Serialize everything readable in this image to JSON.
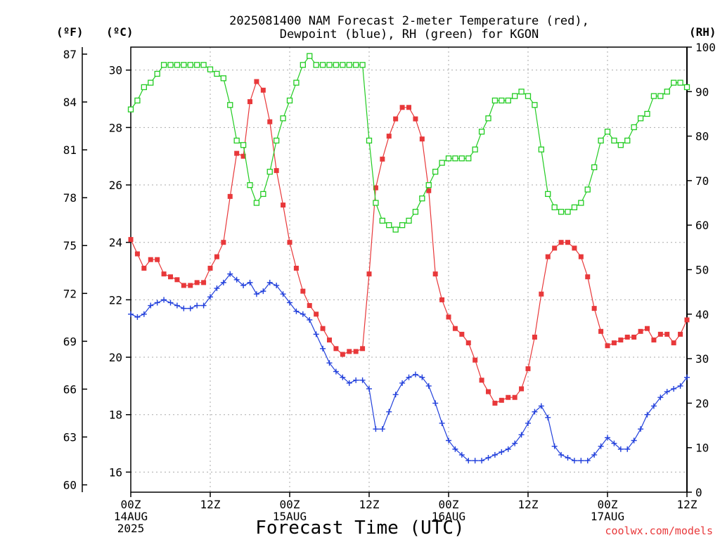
{
  "chart_data": {
    "type": "line",
    "title": [
      "2025081400 NAM Forecast 2-meter Temperature (red),",
      "Dewpoint (blue), RH (green) for KGON"
    ],
    "xlabel": "Forecast Time (UTC)",
    "credit": "coolwx.com/models",
    "units": {
      "fahrenheit": "(ºF)",
      "celsius": "(ºC)",
      "rh": "(RH)"
    },
    "x_range_hours": [
      0,
      84
    ],
    "x_ticks": [
      {
        "hour": 0,
        "label": [
          "00Z",
          "14AUG",
          "2025"
        ]
      },
      {
        "hour": 12,
        "label": [
          "12Z"
        ]
      },
      {
        "hour": 24,
        "label": [
          "00Z",
          "15AUG"
        ]
      },
      {
        "hour": 36,
        "label": [
          "12Z"
        ]
      },
      {
        "hour": 48,
        "label": [
          "00Z",
          "16AUG"
        ]
      },
      {
        "hour": 60,
        "label": [
          "12Z"
        ]
      },
      {
        "hour": 72,
        "label": [
          "00Z",
          "17AUG"
        ]
      },
      {
        "hour": 84,
        "label": [
          "12Z"
        ]
      }
    ],
    "y_celsius_range": [
      15.3,
      30.8
    ],
    "y_celsius_ticks": [
      "16",
      "18",
      "20",
      "22",
      "24",
      "26",
      "28",
      "30"
    ],
    "y_fahrenheit_ticks": [
      "60",
      "63",
      "66",
      "69",
      "72",
      "75",
      "78",
      "81",
      "84",
      "87"
    ],
    "y_rh_range": [
      0,
      100
    ],
    "y_rh_ticks": [
      "0",
      "10",
      "20",
      "30",
      "40",
      "50",
      "60",
      "70",
      "80",
      "90",
      "100"
    ],
    "grid": true,
    "colors": {
      "temperature": "#e8383a",
      "dewpoint": "#2240dc",
      "rh": "#22cc22",
      "grid": "#aaaaaa"
    },
    "series": [
      {
        "name": "Temperature (red)",
        "axis": "celsius",
        "marker": "filled-square",
        "x": [
          0,
          1,
          2,
          3,
          4,
          5,
          6,
          7,
          8,
          9,
          10,
          11,
          12,
          13,
          14,
          15,
          16,
          17,
          18,
          19,
          20,
          21,
          22,
          23,
          24,
          25,
          26,
          27,
          28,
          29,
          30,
          31,
          32,
          33,
          34,
          35,
          36,
          37,
          38,
          39,
          40,
          41,
          42,
          43,
          44,
          45,
          46,
          47,
          48,
          49,
          50,
          51,
          52,
          53,
          54,
          55,
          56,
          57,
          58,
          59,
          60,
          61,
          62,
          63,
          64,
          65,
          66,
          67,
          68,
          69,
          70,
          71,
          72,
          73,
          74,
          75,
          76,
          77,
          78,
          79,
          80,
          81,
          82,
          83,
          84
        ],
        "values": [
          24.1,
          23.6,
          23.1,
          23.4,
          23.4,
          22.9,
          22.8,
          22.7,
          22.5,
          22.5,
          22.6,
          22.6,
          23.1,
          23.5,
          24.0,
          25.6,
          27.1,
          27.0,
          28.9,
          29.6,
          29.3,
          28.2,
          26.5,
          25.3,
          24.0,
          23.1,
          22.3,
          21.8,
          21.5,
          21.0,
          20.6,
          20.3,
          20.1,
          20.2,
          20.2,
          20.3,
          22.9,
          25.9,
          26.9,
          27.7,
          28.3,
          28.7,
          28.7,
          28.3,
          27.6,
          25.8,
          22.9,
          22.0,
          21.4,
          21.0,
          20.8,
          20.5,
          19.9,
          19.2,
          18.8,
          18.4,
          18.5,
          18.6,
          18.6,
          18.9,
          19.6,
          20.7,
          22.2,
          23.5,
          23.8,
          24.0,
          24.0,
          23.8,
          23.5,
          22.8,
          21.7,
          20.9,
          20.4,
          20.5,
          20.6,
          20.7,
          20.7,
          20.9,
          21.0,
          20.6,
          20.8,
          20.8,
          20.5,
          20.8,
          21.3
        ]
      },
      {
        "name": "Dewpoint (blue)",
        "axis": "celsius",
        "marker": "plus",
        "x": [
          0,
          1,
          2,
          3,
          4,
          5,
          6,
          7,
          8,
          9,
          10,
          11,
          12,
          13,
          14,
          15,
          16,
          17,
          18,
          19,
          20,
          21,
          22,
          23,
          24,
          25,
          26,
          27,
          28,
          29,
          30,
          31,
          32,
          33,
          34,
          35,
          36,
          37,
          38,
          39,
          40,
          41,
          42,
          43,
          44,
          45,
          46,
          47,
          48,
          49,
          50,
          51,
          52,
          53,
          54,
          55,
          56,
          57,
          58,
          59,
          60,
          61,
          62,
          63,
          64,
          65,
          66,
          67,
          68,
          69,
          70,
          71,
          72,
          73,
          74,
          75,
          76,
          77,
          78,
          79,
          80,
          81,
          82,
          83,
          84
        ],
        "values": [
          21.5,
          21.4,
          21.5,
          21.8,
          21.9,
          22.0,
          21.9,
          21.8,
          21.7,
          21.7,
          21.8,
          21.8,
          22.1,
          22.4,
          22.6,
          22.9,
          22.7,
          22.5,
          22.6,
          22.2,
          22.3,
          22.6,
          22.5,
          22.2,
          21.9,
          21.6,
          21.5,
          21.3,
          20.8,
          20.3,
          19.8,
          19.5,
          19.3,
          19.1,
          19.2,
          19.2,
          18.9,
          17.5,
          17.5,
          18.1,
          18.7,
          19.1,
          19.3,
          19.4,
          19.3,
          19.0,
          18.4,
          17.7,
          17.1,
          16.8,
          16.6,
          16.4,
          16.4,
          16.4,
          16.5,
          16.6,
          16.7,
          16.8,
          17.0,
          17.3,
          17.7,
          18.1,
          18.3,
          17.9,
          16.9,
          16.6,
          16.5,
          16.4,
          16.4,
          16.4,
          16.6,
          16.9,
          17.2,
          17.0,
          16.8,
          16.8,
          17.1,
          17.5,
          18.0,
          18.3,
          18.6,
          18.8,
          18.9,
          19.0,
          19.3
        ]
      },
      {
        "name": "RH (green)",
        "axis": "rh",
        "marker": "open-square",
        "x": [
          0,
          1,
          2,
          3,
          4,
          5,
          6,
          7,
          8,
          9,
          10,
          11,
          12,
          13,
          14,
          15,
          16,
          17,
          18,
          19,
          20,
          21,
          22,
          23,
          24,
          25,
          26,
          27,
          28,
          29,
          30,
          31,
          32,
          33,
          34,
          35,
          36,
          37,
          38,
          39,
          40,
          41,
          42,
          43,
          44,
          45,
          46,
          47,
          48,
          49,
          50,
          51,
          52,
          53,
          54,
          55,
          56,
          57,
          58,
          59,
          60,
          61,
          62,
          63,
          64,
          65,
          66,
          67,
          68,
          69,
          70,
          71,
          72,
          73,
          74,
          75,
          76,
          77,
          78,
          79,
          80,
          81,
          82,
          83,
          84
        ],
        "values": [
          86,
          88,
          91,
          92,
          94,
          96,
          96,
          96,
          96,
          96,
          96,
          96,
          95,
          94,
          93,
          87,
          79,
          78,
          69,
          65,
          67,
          72,
          79,
          84,
          88,
          92,
          96,
          98,
          96,
          96,
          96,
          96,
          96,
          96,
          96,
          96,
          79,
          65,
          61,
          60,
          59,
          60,
          61,
          63,
          66,
          69,
          72,
          74,
          75,
          75,
          75,
          75,
          77,
          81,
          84,
          88,
          88,
          88,
          89,
          90,
          89,
          87,
          77,
          67,
          64,
          63,
          63,
          64,
          65,
          68,
          73,
          79,
          81,
          79,
          78,
          79,
          82,
          84,
          85,
          89,
          89,
          90,
          92,
          92,
          91
        ]
      }
    ]
  }
}
